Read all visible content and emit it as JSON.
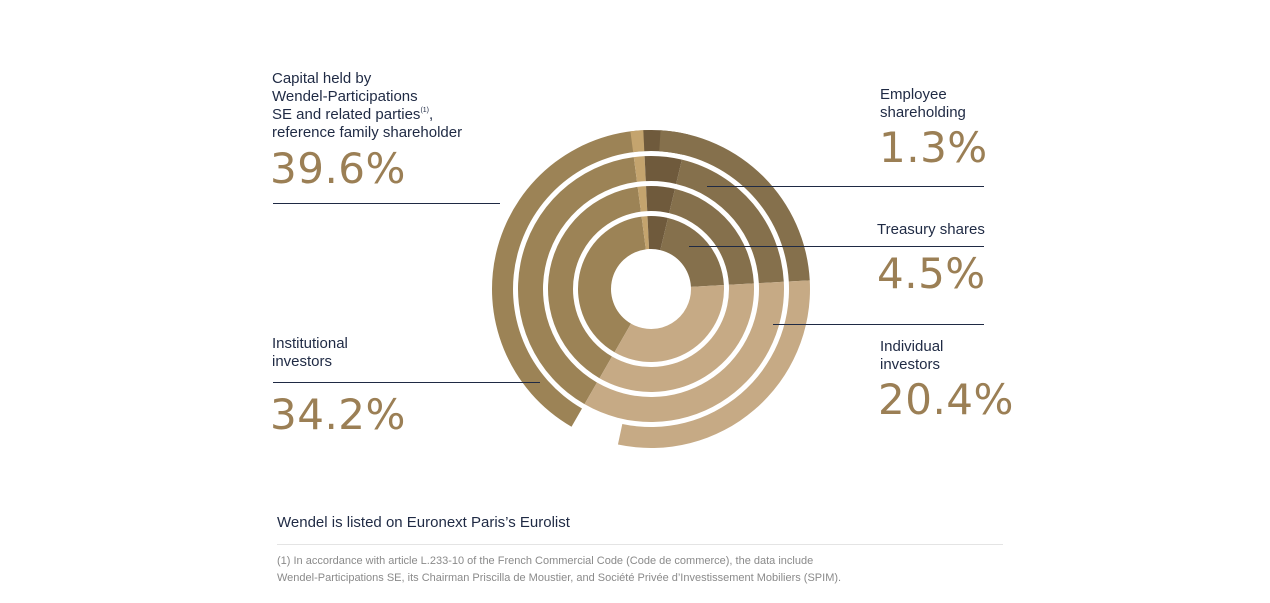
{
  "chart_data": {
    "type": "pie",
    "style": "concentric-arcs",
    "series": [
      {
        "key": "wendel",
        "label_lines": [
          "Capital held by",
          "Wendel-Participations",
          "SE and related parties",
          "reference family shareholder"
        ],
        "footnote_marker": "(1)",
        "value_text": "39.6%",
        "value": 39.6,
        "color": "#9c8356"
      },
      {
        "key": "employee",
        "label_lines": [
          "Employee",
          "shareholding"
        ],
        "value_text": "1.3%",
        "value": 1.3,
        "color": "#c4a46e"
      },
      {
        "key": "treasury",
        "label_lines": [
          "Treasury shares"
        ],
        "value_text": "4.5%",
        "value": 4.5,
        "color": "#6f5a3c"
      },
      {
        "key": "individual",
        "label_lines": [
          "Individual",
          "investors"
        ],
        "value_text": "20.4%",
        "value": 20.4,
        "color": "#85704c"
      },
      {
        "key": "institutional",
        "label_lines": [
          "Institutional",
          "investors"
        ],
        "value_text": "34.2%",
        "value": 34.2,
        "color": "#c6aa85"
      }
    ]
  },
  "listing_text": "Wendel is listed on Euronext Paris’s Eurolist",
  "footnote": {
    "line1": "(1) In accordance with article L.233-10 of the French Commercial Code (Code de commerce), the data include",
    "line2": "Wendel-Participations SE, its Chairman Priscilla de Moustier, and Société Privée d’Investissement Mobiliers (SPIM)."
  },
  "colors": {
    "accent": "#9b7f55",
    "text": "#1f2a44",
    "rule": "#1f2a44"
  }
}
